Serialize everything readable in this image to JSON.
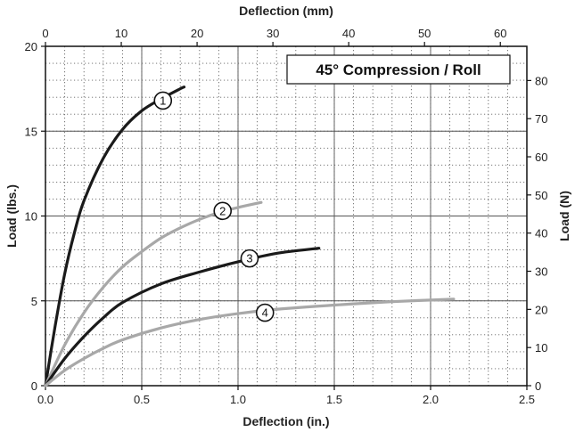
{
  "chart_data": {
    "type": "line",
    "title": "45° Compression / Roll",
    "xlabel": "Deflection (in.)",
    "ylabel": "Load (lbs.)",
    "x2label": "Deflection (mm)",
    "y2label": "Load (N)",
    "xlim": [
      0,
      2.5
    ],
    "ylim": [
      0,
      20
    ],
    "x2lim": [
      0,
      63.5
    ],
    "y2lim": [
      0,
      88.96
    ],
    "x_ticks": [
      "0.0",
      "0.5",
      "1.0",
      "1.5",
      "2.0",
      "2.5"
    ],
    "y_ticks": [
      "0",
      "5",
      "10",
      "15",
      "20"
    ],
    "x2_ticks": [
      "0",
      "10",
      "20",
      "30",
      "40",
      "50",
      "60"
    ],
    "y2_ticks": [
      "0",
      "10",
      "20",
      "30",
      "40",
      "50",
      "60",
      "70",
      "80"
    ],
    "grid": "major solid, minor dotted",
    "series": [
      {
        "name": "1",
        "color": "#1a1a1a",
        "x": [
          0,
          0.05,
          0.1,
          0.15,
          0.2,
          0.3,
          0.4,
          0.5,
          0.6,
          0.7,
          0.72
        ],
        "y": [
          0,
          3.5,
          6.6,
          9.0,
          10.9,
          13.4,
          15.1,
          16.2,
          16.9,
          17.5,
          17.6
        ]
      },
      {
        "name": "2",
        "color": "#a8a8a8",
        "x": [
          0,
          0.1,
          0.2,
          0.3,
          0.4,
          0.5,
          0.6,
          0.7,
          0.8,
          0.9,
          1.0,
          1.1,
          1.12
        ],
        "y": [
          0,
          2.4,
          4.3,
          5.8,
          7.0,
          7.9,
          8.7,
          9.3,
          9.8,
          10.2,
          10.5,
          10.75,
          10.8
        ]
      },
      {
        "name": "3",
        "color": "#1a1a1a",
        "x": [
          0,
          0.1,
          0.2,
          0.3,
          0.4,
          0.6,
          0.8,
          1.0,
          1.2,
          1.42
        ],
        "y": [
          0,
          1.6,
          2.9,
          4.0,
          4.9,
          6.0,
          6.7,
          7.3,
          7.8,
          8.1
        ]
      },
      {
        "name": "4",
        "color": "#a8a8a8",
        "x": [
          0,
          0.1,
          0.2,
          0.3,
          0.4,
          0.6,
          0.8,
          1.0,
          1.2,
          1.5,
          1.8,
          2.12
        ],
        "y": [
          0,
          0.9,
          1.6,
          2.2,
          2.7,
          3.4,
          3.9,
          4.25,
          4.5,
          4.75,
          4.95,
          5.1
        ]
      }
    ],
    "annotations": [
      {
        "label": "1",
        "x": 0.61,
        "y": 16.8
      },
      {
        "label": "2",
        "x": 0.92,
        "y": 10.3
      },
      {
        "label": "3",
        "x": 1.06,
        "y": 7.5
      },
      {
        "label": "4",
        "x": 1.14,
        "y": 4.3
      }
    ]
  }
}
